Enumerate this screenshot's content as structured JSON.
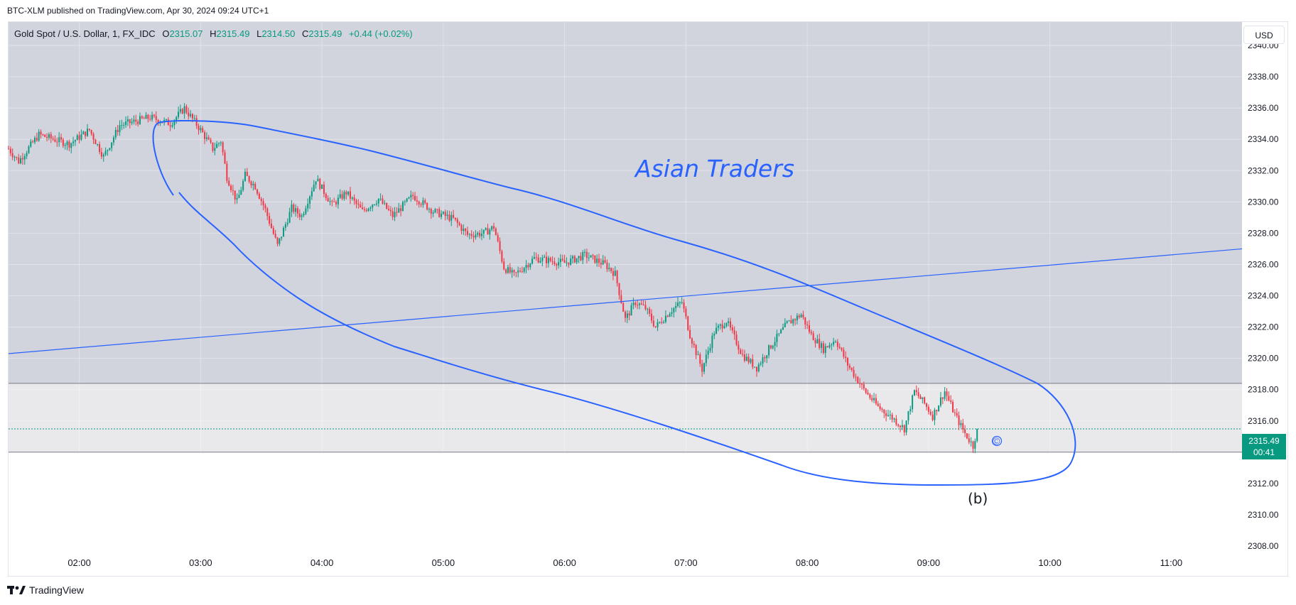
{
  "header": {
    "publisher_line": "BTC-XLM published on TradingView.com, Apr 30, 2024 09:24 UTC+1"
  },
  "legend": {
    "symbol": "Gold Spot / U.S. Dollar, 1, FX_IDC",
    "o_label": "O",
    "o_value": "2315.07",
    "h_label": "H",
    "h_value": "2315.49",
    "l_label": "L",
    "l_value": "2314.50",
    "c_label": "C",
    "c_value": "2315.49",
    "change": "+0.44 (+0.02%)"
  },
  "currency": "USD",
  "last_price": {
    "price": "2315.49",
    "countdown": "00:41"
  },
  "watermark": {
    "brand": "TradingView",
    "logo_icon": "tradingview-logo-icon"
  },
  "annotations": {
    "zone_label": "Asian Traders",
    "wave_label": "(b)",
    "copyright_mark": "©"
  },
  "colors": {
    "up": "#089981",
    "down": "#f23645",
    "drawing": "#2962ff",
    "upper_shade": "#d1d4dc",
    "lower_shade": "#e9e9ec"
  },
  "chart_data": {
    "type": "candlestick",
    "interval": "1 minute",
    "ylim": [
      2307.5,
      2341.5
    ],
    "xlim": [
      "01:25",
      "11:35"
    ],
    "price_ticks": [
      2308,
      2310,
      2312,
      2314,
      2316,
      2318,
      2320,
      2322,
      2324,
      2326,
      2328,
      2330,
      2332,
      2334,
      2336,
      2338,
      2340
    ],
    "price_tick_labels": [
      "2308.00",
      "2310.00",
      "2312.00",
      "2314.00",
      "2316.00",
      "2318.00",
      "2320.00",
      "2322.00",
      "2324.00",
      "2326.00",
      "2328.00",
      "2330.00",
      "2332.00",
      "2334.00",
      "2336.00",
      "2338.00",
      "2340.00"
    ],
    "time_ticks": [
      "02:00",
      "03:00",
      "04:00",
      "05:00",
      "06:00",
      "07:00",
      "08:00",
      "09:00",
      "10:00",
      "11:00"
    ],
    "grid": true,
    "zones": [
      {
        "y_from": 2318.4,
        "y_to": 2341.5
      },
      {
        "y_from": 2314.0,
        "y_to": 2318.4
      }
    ],
    "horizontal_lines": [
      2318.4,
      2314.0
    ],
    "last_price_line": 2315.49,
    "trend_line": {
      "from": {
        "t": "01:25",
        "y": 2320.3
      },
      "to": {
        "t": "11:35",
        "y": 2327.0
      }
    },
    "price_path": [
      {
        "t": "01:25",
        "y": 2333.4
      },
      {
        "t": "01:30",
        "y": 2332.6
      },
      {
        "t": "01:40",
        "y": 2334.3
      },
      {
        "t": "01:55",
        "y": 2333.7
      },
      {
        "t": "02:05",
        "y": 2334.6
      },
      {
        "t": "02:12",
        "y": 2332.9
      },
      {
        "t": "02:20",
        "y": 2334.9
      },
      {
        "t": "02:35",
        "y": 2335.4
      },
      {
        "t": "02:45",
        "y": 2335.0
      },
      {
        "t": "02:52",
        "y": 2336.0
      },
      {
        "t": "03:00",
        "y": 2334.6
      },
      {
        "t": "03:06",
        "y": 2333.4
      },
      {
        "t": "03:10",
        "y": 2333.9
      },
      {
        "t": "03:13",
        "y": 2331.6
      },
      {
        "t": "03:18",
        "y": 2330.0
      },
      {
        "t": "03:22",
        "y": 2331.7
      },
      {
        "t": "03:27",
        "y": 2331.0
      },
      {
        "t": "03:32",
        "y": 2329.5
      },
      {
        "t": "03:38",
        "y": 2327.2
      },
      {
        "t": "03:45",
        "y": 2329.6
      },
      {
        "t": "03:50",
        "y": 2329.1
      },
      {
        "t": "03:57",
        "y": 2331.5
      },
      {
        "t": "04:05",
        "y": 2329.8
      },
      {
        "t": "04:12",
        "y": 2330.6
      },
      {
        "t": "04:20",
        "y": 2329.4
      },
      {
        "t": "04:28",
        "y": 2330.2
      },
      {
        "t": "04:35",
        "y": 2329.1
      },
      {
        "t": "04:45",
        "y": 2330.4
      },
      {
        "t": "04:55",
        "y": 2329.4
      },
      {
        "t": "05:05",
        "y": 2328.9
      },
      {
        "t": "05:12",
        "y": 2327.9
      },
      {
        "t": "05:20",
        "y": 2328.0
      },
      {
        "t": "05:25",
        "y": 2328.4
      },
      {
        "t": "05:30",
        "y": 2325.8
      },
      {
        "t": "05:35",
        "y": 2325.3
      },
      {
        "t": "05:45",
        "y": 2326.4
      },
      {
        "t": "06:00",
        "y": 2326.1
      },
      {
        "t": "06:10",
        "y": 2326.6
      },
      {
        "t": "06:20",
        "y": 2326.0
      },
      {
        "t": "06:25",
        "y": 2325.4
      },
      {
        "t": "06:30",
        "y": 2322.5
      },
      {
        "t": "06:35",
        "y": 2323.6
      },
      {
        "t": "06:40",
        "y": 2323.2
      },
      {
        "t": "06:45",
        "y": 2322.0
      },
      {
        "t": "06:52",
        "y": 2323.0
      },
      {
        "t": "06:58",
        "y": 2323.6
      },
      {
        "t": "07:02",
        "y": 2321.5
      },
      {
        "t": "07:08",
        "y": 2319.3
      },
      {
        "t": "07:14",
        "y": 2321.7
      },
      {
        "t": "07:20",
        "y": 2322.4
      },
      {
        "t": "07:28",
        "y": 2320.2
      },
      {
        "t": "07:35",
        "y": 2319.4
      },
      {
        "t": "07:42",
        "y": 2320.8
      },
      {
        "t": "07:50",
        "y": 2322.2
      },
      {
        "t": "07:57",
        "y": 2322.8
      },
      {
        "t": "08:02",
        "y": 2321.5
      },
      {
        "t": "08:08",
        "y": 2320.6
      },
      {
        "t": "08:14",
        "y": 2321.2
      },
      {
        "t": "08:20",
        "y": 2319.6
      },
      {
        "t": "08:28",
        "y": 2318.0
      },
      {
        "t": "08:35",
        "y": 2316.9
      },
      {
        "t": "08:43",
        "y": 2316.1
      },
      {
        "t": "08:48",
        "y": 2315.5
      },
      {
        "t": "08:53",
        "y": 2317.9
      },
      {
        "t": "08:58",
        "y": 2317.1
      },
      {
        "t": "09:02",
        "y": 2316.3
      },
      {
        "t": "09:08",
        "y": 2317.9
      },
      {
        "t": "09:13",
        "y": 2316.4
      },
      {
        "t": "09:18",
        "y": 2315.2
      },
      {
        "t": "09:22",
        "y": 2314.4
      },
      {
        "t": "09:24",
        "y": 2315.49
      }
    ]
  }
}
